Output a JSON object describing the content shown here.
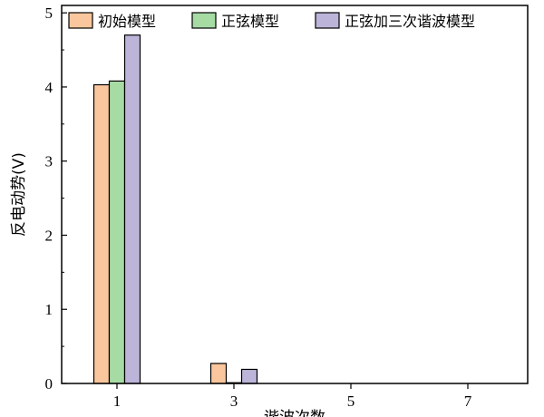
{
  "chart_data": {
    "type": "bar",
    "xlabel": "谐波次数",
    "ylabel": "反电动势(V)",
    "categories": [
      "1",
      "3",
      "5",
      "7"
    ],
    "yticks": [
      "0",
      "1",
      "2",
      "3",
      "4",
      "5"
    ],
    "ylim": [
      0,
      5.1
    ],
    "legend_position": "top",
    "series": [
      {
        "name": "初始模型",
        "color": "#f9c69d",
        "values": [
          4.03,
          0.27,
          0.0,
          0.0
        ]
      },
      {
        "name": "正弦模型",
        "color": "#a6dba4",
        "values": [
          4.08,
          0.01,
          0.0,
          0.0
        ]
      },
      {
        "name": "正弦加三次谐波模型",
        "color": "#bcb4d9",
        "values": [
          4.7,
          0.19,
          0.0,
          0.0
        ]
      }
    ]
  }
}
